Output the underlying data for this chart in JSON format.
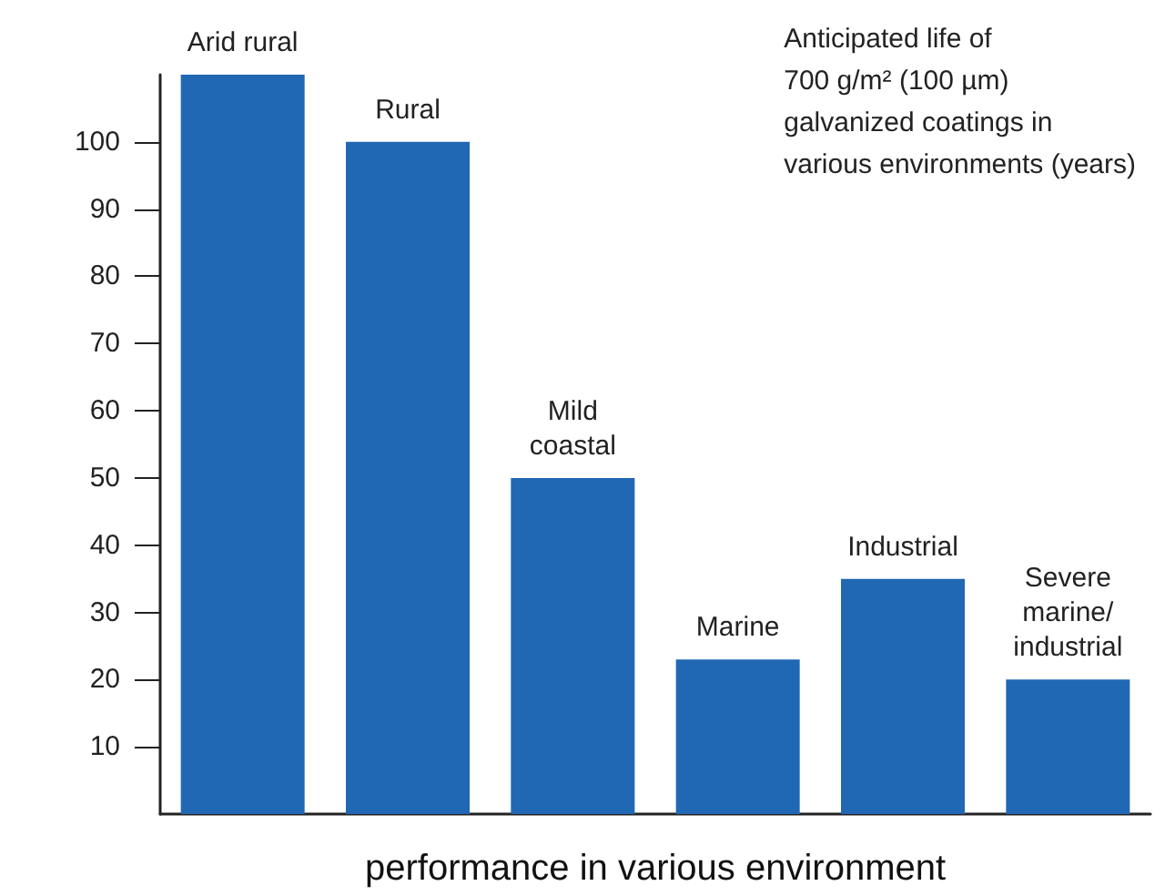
{
  "chart_data": {
    "type": "bar",
    "xlabel": "performance in various environment",
    "categories": [
      "Arid rural",
      "Rural",
      "Mild\ncoastal",
      "Marine",
      "Industrial",
      "Severe\nmarine/\nindustrial"
    ],
    "values": [
      110,
      100,
      50,
      23,
      35,
      20
    ],
    "color": "#2068b4",
    "ylim": [
      0,
      110
    ],
    "yticks": [
      10,
      20,
      30,
      40,
      50,
      60,
      70,
      80,
      90,
      100
    ],
    "grid": false,
    "annotations": [
      "Anticipated life of\n700 g/m² (100 µm)\ngalvanized coatings in\nvarious environments (years)"
    ]
  }
}
